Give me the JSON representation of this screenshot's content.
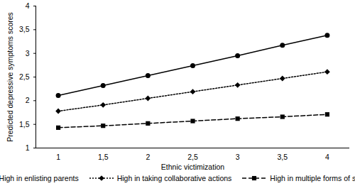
{
  "chart_data": {
    "type": "line",
    "x_label": "Ethnic victimization",
    "y_label": "Predicted depressive symptoms scores",
    "x": [
      1,
      1.5,
      2,
      2.5,
      3,
      3.5,
      4
    ],
    "series": [
      {
        "name": "High in enlisting parents",
        "color": "#000000",
        "marker": "circle",
        "line_style": "solid",
        "values": [
          2.11,
          2.32,
          2.53,
          2.74,
          2.95,
          3.17,
          3.38
        ]
      },
      {
        "name": "High in taking collaborative actions",
        "color": "#000000",
        "marker": "diamond",
        "line_style": "dotted",
        "values": [
          1.78,
          1.91,
          2.05,
          2.19,
          2.33,
          2.47,
          2.61
        ]
      },
      {
        "name": "High in multiple forms of strategies",
        "color": "#000000",
        "marker": "square",
        "line_style": "dashed",
        "values": [
          1.43,
          1.47,
          1.52,
          1.57,
          1.62,
          1.66,
          1.71
        ]
      }
    ],
    "xlim": [
      0.75,
      4.25
    ],
    "xticks": [
      1,
      {
        "value": 1.5,
        "label": "1,5"
      },
      2,
      {
        "value": 2.5,
        "label": "2,5"
      },
      3,
      {
        "value": 3.5,
        "label": "3,5"
      },
      4
    ],
    "ylim": [
      1,
      4
    ],
    "yticks": [
      1,
      {
        "value": 1.5,
        "label": "1,5"
      },
      2,
      {
        "value": 2.5,
        "label": "2,5"
      },
      3,
      {
        "value": 3.5,
        "label": "3,5"
      },
      4
    ],
    "grid": false,
    "legend": "bottom"
  }
}
